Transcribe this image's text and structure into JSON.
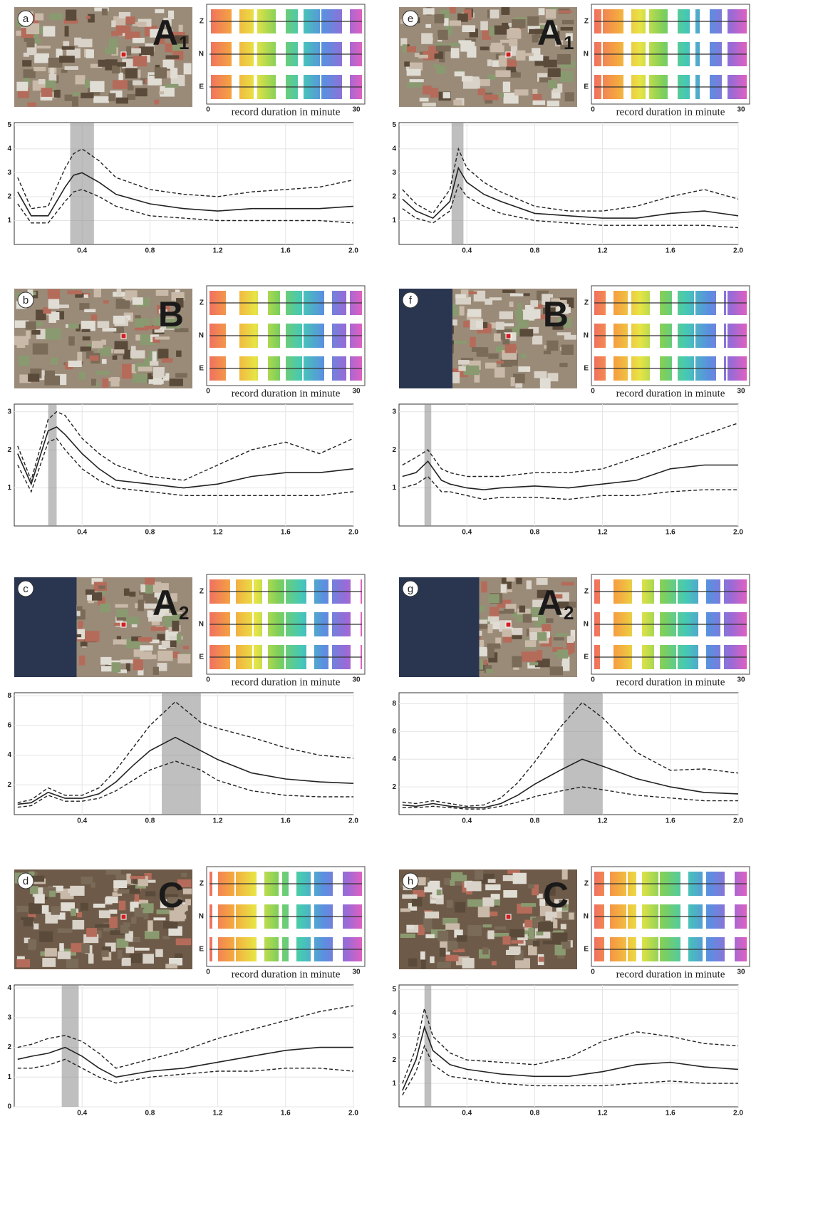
{
  "chart_data": [
    {
      "type": "line",
      "panel": "a",
      "site": "A",
      "site_index": "1",
      "components": [
        "Z",
        "N",
        "E"
      ],
      "record_label": "record duration in minute",
      "record_ticks": [
        0,
        30
      ],
      "x": [
        0.02,
        0.1,
        0.2,
        0.3,
        0.35,
        0.4,
        0.5,
        0.6,
        0.8,
        1.0,
        1.2,
        1.4,
        1.6,
        1.8,
        2.0
      ],
      "series": [
        {
          "color": "#222222",
          "dashed": false,
          "values": [
            2.2,
            1.2,
            1.2,
            2.4,
            2.9,
            3.0,
            2.6,
            2.1,
            1.7,
            1.5,
            1.4,
            1.5,
            1.5,
            1.5,
            1.6
          ]
        },
        {
          "color": "#222222",
          "dashed": true,
          "values": [
            2.8,
            1.5,
            1.6,
            3.2,
            3.8,
            4.0,
            3.5,
            2.8,
            2.3,
            2.1,
            2.0,
            2.2,
            2.3,
            2.4,
            2.7
          ]
        },
        {
          "color": "#222222",
          "dashed": true,
          "values": [
            1.7,
            0.9,
            0.9,
            1.8,
            2.2,
            2.3,
            2.0,
            1.6,
            1.2,
            1.1,
            1.0,
            1.0,
            1.0,
            1.0,
            0.9
          ]
        }
      ],
      "peak_band": [
        0.33,
        0.47
      ],
      "xlim": [
        0,
        2.0
      ],
      "ylim": [
        0,
        5.1
      ],
      "xticks": [
        0.4,
        0.8,
        1.2,
        1.6,
        {
          "value": 2,
          "label": "2.0"
        }
      ],
      "yticks": [
        1,
        2,
        3,
        4,
        5
      ],
      "grid": true
    },
    {
      "type": "line",
      "panel": "b",
      "site": "B",
      "components": [
        "Z",
        "N",
        "E"
      ],
      "record_label": "record duration in minute",
      "record_ticks": [
        0,
        30
      ],
      "x": [
        0.02,
        0.1,
        0.2,
        0.25,
        0.3,
        0.4,
        0.5,
        0.6,
        0.8,
        1.0,
        1.2,
        1.4,
        1.6,
        1.8,
        2.0
      ],
      "series": [
        {
          "color": "#222222",
          "dashed": false,
          "values": [
            1.9,
            1.1,
            2.5,
            2.6,
            2.4,
            1.9,
            1.5,
            1.2,
            1.1,
            1.0,
            1.1,
            1.3,
            1.4,
            1.4,
            1.5
          ]
        },
        {
          "color": "#222222",
          "dashed": true,
          "values": [
            2.1,
            1.2,
            2.8,
            3.0,
            2.9,
            2.3,
            1.9,
            1.6,
            1.3,
            1.2,
            1.6,
            2.0,
            2.2,
            1.9,
            2.3
          ]
        },
        {
          "color": "#222222",
          "dashed": true,
          "values": [
            1.6,
            0.9,
            2.2,
            2.3,
            2.0,
            1.5,
            1.2,
            1.0,
            0.9,
            0.8,
            0.8,
            0.8,
            0.8,
            0.8,
            0.9
          ]
        }
      ],
      "peak_band": [
        0.2,
        0.25
      ],
      "xlim": [
        0,
        2.0
      ],
      "ylim": [
        0,
        3.2
      ],
      "xticks": [
        0.4,
        0.8,
        1.2,
        1.6,
        {
          "value": 2,
          "label": "2.0"
        }
      ],
      "yticks": [
        1,
        2,
        3
      ],
      "grid": true
    },
    {
      "type": "line",
      "panel": "c",
      "site": "A",
      "site_index": "2",
      "components": [
        "Z",
        "N",
        "E"
      ],
      "record_label": "record duration in minute",
      "record_ticks": [
        0,
        30
      ],
      "x": [
        0.02,
        0.1,
        0.2,
        0.3,
        0.4,
        0.5,
        0.6,
        0.7,
        0.8,
        0.95,
        1.1,
        1.2,
        1.4,
        1.6,
        1.8,
        2.0
      ],
      "series": [
        {
          "color": "#222222",
          "dashed": false,
          "values": [
            0.7,
            0.8,
            1.5,
            1.1,
            1.1,
            1.4,
            2.2,
            3.3,
            4.3,
            5.2,
            4.3,
            3.7,
            2.8,
            2.4,
            2.2,
            2.1
          ]
        },
        {
          "color": "#222222",
          "dashed": true,
          "values": [
            0.8,
            1.0,
            1.8,
            1.3,
            1.3,
            1.8,
            3.0,
            4.5,
            6.0,
            7.6,
            6.2,
            5.8,
            5.2,
            4.5,
            4.0,
            3.8
          ]
        },
        {
          "color": "#222222",
          "dashed": true,
          "values": [
            0.5,
            0.6,
            1.3,
            0.9,
            0.9,
            1.1,
            1.6,
            2.3,
            3.0,
            3.6,
            3.0,
            2.3,
            1.6,
            1.3,
            1.2,
            1.2
          ]
        }
      ],
      "peak_band": [
        0.87,
        1.1
      ],
      "xlim": [
        0,
        2.0
      ],
      "ylim": [
        0,
        8.2
      ],
      "xticks": [
        0.4,
        0.8,
        1.2,
        1.6,
        {
          "value": 2,
          "label": "2.0"
        }
      ],
      "yticks": [
        2,
        4,
        6,
        8
      ],
      "grid": true
    },
    {
      "type": "line",
      "panel": "d",
      "site": "C",
      "components": [
        "Z",
        "N",
        "E"
      ],
      "record_label": "record duration in minute",
      "record_ticks": [
        0,
        30
      ],
      "x": [
        0.02,
        0.1,
        0.2,
        0.3,
        0.4,
        0.5,
        0.6,
        0.8,
        1.0,
        1.2,
        1.4,
        1.6,
        1.8,
        2.0
      ],
      "series": [
        {
          "color": "#222222",
          "dashed": false,
          "values": [
            1.6,
            1.7,
            1.8,
            2.0,
            1.7,
            1.3,
            1.0,
            1.2,
            1.3,
            1.5,
            1.7,
            1.9,
            2.0,
            2.0
          ]
        },
        {
          "color": "#222222",
          "dashed": true,
          "values": [
            2.0,
            2.1,
            2.3,
            2.4,
            2.2,
            1.8,
            1.3,
            1.6,
            1.9,
            2.3,
            2.6,
            2.9,
            3.2,
            3.4
          ]
        },
        {
          "color": "#222222",
          "dashed": true,
          "values": [
            1.3,
            1.3,
            1.4,
            1.6,
            1.3,
            1.0,
            0.8,
            1.0,
            1.1,
            1.2,
            1.2,
            1.3,
            1.3,
            1.2
          ]
        }
      ],
      "peak_band": [
        0.28,
        0.38
      ],
      "xlim": [
        0,
        2.0
      ],
      "ylim": [
        0,
        4.1
      ],
      "xticks": [
        0.4,
        0.8,
        1.2,
        1.6,
        {
          "value": 2,
          "label": "2.0"
        }
      ],
      "yticks": [
        0,
        1,
        2,
        3,
        4
      ],
      "grid": true
    },
    {
      "type": "line",
      "panel": "e",
      "site": "A",
      "site_index": "1",
      "components": [
        "Z",
        "N",
        "E"
      ],
      "record_label": "record duration in minute",
      "record_ticks": [
        0,
        30
      ],
      "x": [
        0.02,
        0.1,
        0.2,
        0.3,
        0.35,
        0.4,
        0.5,
        0.6,
        0.8,
        1.0,
        1.2,
        1.4,
        1.6,
        1.8,
        2.0
      ],
      "series": [
        {
          "color": "#222222",
          "dashed": false,
          "values": [
            1.9,
            1.4,
            1.1,
            1.8,
            3.2,
            2.6,
            2.1,
            1.8,
            1.3,
            1.2,
            1.1,
            1.1,
            1.3,
            1.4,
            1.2
          ]
        },
        {
          "color": "#222222",
          "dashed": true,
          "values": [
            2.3,
            1.7,
            1.3,
            2.3,
            4.0,
            3.2,
            2.6,
            2.2,
            1.6,
            1.4,
            1.4,
            1.6,
            2.0,
            2.3,
            1.9
          ]
        },
        {
          "color": "#222222",
          "dashed": true,
          "values": [
            1.5,
            1.1,
            0.9,
            1.4,
            2.5,
            2.0,
            1.6,
            1.3,
            1.0,
            0.9,
            0.8,
            0.8,
            0.8,
            0.8,
            0.7
          ]
        }
      ],
      "peak_band": [
        0.31,
        0.38
      ],
      "xlim": [
        0,
        2.0
      ],
      "ylim": [
        0,
        5.1
      ],
      "xticks": [
        0.4,
        0.8,
        1.2,
        1.6,
        {
          "value": 2,
          "label": "2.0"
        }
      ],
      "yticks": [
        1,
        2,
        3,
        4,
        5
      ],
      "grid": true
    },
    {
      "type": "line",
      "panel": "f",
      "site": "B",
      "components": [
        "Z",
        "N",
        "E"
      ],
      "record_label": "record duration in minute",
      "record_ticks": [
        0,
        30
      ],
      "x": [
        0.02,
        0.1,
        0.17,
        0.25,
        0.3,
        0.4,
        0.5,
        0.6,
        0.8,
        1.0,
        1.2,
        1.4,
        1.6,
        1.8,
        2.0
      ],
      "series": [
        {
          "color": "#222222",
          "dashed": false,
          "values": [
            1.3,
            1.4,
            1.7,
            1.2,
            1.1,
            1.0,
            0.95,
            1.0,
            1.05,
            1.0,
            1.1,
            1.2,
            1.5,
            1.6,
            1.6
          ]
        },
        {
          "color": "#222222",
          "dashed": true,
          "values": [
            1.6,
            1.8,
            2.0,
            1.5,
            1.4,
            1.3,
            1.3,
            1.3,
            1.4,
            1.4,
            1.5,
            1.8,
            2.1,
            2.4,
            2.7
          ]
        },
        {
          "color": "#222222",
          "dashed": true,
          "values": [
            1.0,
            1.1,
            1.3,
            0.9,
            0.9,
            0.8,
            0.7,
            0.75,
            0.75,
            0.7,
            0.8,
            0.8,
            0.9,
            0.95,
            0.95
          ]
        }
      ],
      "peak_band": [
        0.15,
        0.19
      ],
      "xlim": [
        0,
        2.0
      ],
      "ylim": [
        0,
        3.2
      ],
      "xticks": [
        0.4,
        0.8,
        1.2,
        1.6,
        {
          "value": 2,
          "label": "2.0"
        }
      ],
      "yticks": [
        1,
        2,
        3
      ],
      "grid": true
    },
    {
      "type": "line",
      "panel": "g",
      "site": "A",
      "site_index": "2",
      "components": [
        "Z",
        "N",
        "E"
      ],
      "record_label": "record duration in minute",
      "record_ticks": [
        0,
        30
      ],
      "x": [
        0.02,
        0.1,
        0.2,
        0.3,
        0.4,
        0.5,
        0.6,
        0.7,
        0.8,
        0.95,
        1.08,
        1.2,
        1.4,
        1.6,
        1.8,
        2.0
      ],
      "series": [
        {
          "color": "#222222",
          "dashed": false,
          "values": [
            0.7,
            0.6,
            0.8,
            0.6,
            0.5,
            0.5,
            0.8,
            1.4,
            2.2,
            3.2,
            4.0,
            3.5,
            2.6,
            2.0,
            1.6,
            1.5
          ]
        },
        {
          "color": "#222222",
          "dashed": true,
          "values": [
            0.9,
            0.8,
            1.0,
            0.8,
            0.6,
            0.7,
            1.2,
            2.3,
            3.8,
            6.3,
            8.1,
            7.0,
            4.5,
            3.2,
            3.3,
            3.0
          ]
        },
        {
          "color": "#222222",
          "dashed": true,
          "values": [
            0.5,
            0.5,
            0.6,
            0.5,
            0.4,
            0.4,
            0.6,
            0.9,
            1.3,
            1.7,
            2.0,
            1.8,
            1.4,
            1.2,
            1.0,
            1.0
          ]
        }
      ],
      "peak_band": [
        0.97,
        1.2
      ],
      "xlim": [
        0,
        2.0
      ],
      "ylim": [
        0,
        8.8
      ],
      "xticks": [
        0.4,
        0.8,
        1.2,
        1.6,
        {
          "value": 2,
          "label": "2.0"
        }
      ],
      "yticks": [
        2,
        4,
        6,
        8
      ],
      "grid": true
    },
    {
      "type": "line",
      "panel": "h",
      "site": "C",
      "components": [
        "Z",
        "N",
        "E"
      ],
      "record_label": "record duration in minute",
      "record_ticks": [
        0,
        30
      ],
      "x": [
        0.02,
        0.1,
        0.15,
        0.2,
        0.3,
        0.4,
        0.6,
        0.8,
        1.0,
        1.2,
        1.4,
        1.6,
        1.8,
        2.0
      ],
      "series": [
        {
          "color": "#222222",
          "dashed": false,
          "values": [
            0.7,
            2.0,
            3.4,
            2.4,
            1.8,
            1.6,
            1.4,
            1.3,
            1.3,
            1.5,
            1.8,
            1.9,
            1.7,
            1.6
          ]
        },
        {
          "color": "#222222",
          "dashed": true,
          "values": [
            1.0,
            2.5,
            4.2,
            3.0,
            2.3,
            2.0,
            1.9,
            1.8,
            2.1,
            2.8,
            3.2,
            3.0,
            2.7,
            2.6
          ]
        },
        {
          "color": "#222222",
          "dashed": true,
          "values": [
            0.5,
            1.5,
            2.6,
            1.8,
            1.3,
            1.2,
            1.0,
            0.9,
            0.9,
            0.9,
            1.0,
            1.1,
            1.0,
            1.0
          ]
        }
      ],
      "peak_band": [
        0.15,
        0.19
      ],
      "xlim": [
        0,
        2.0
      ],
      "ylim": [
        0,
        5.2
      ],
      "xticks": [
        0.4,
        0.8,
        1.2,
        1.6,
        {
          "value": 2,
          "label": "2.0"
        }
      ],
      "yticks": [
        1,
        2,
        3,
        4,
        5
      ],
      "grid": true
    }
  ]
}
